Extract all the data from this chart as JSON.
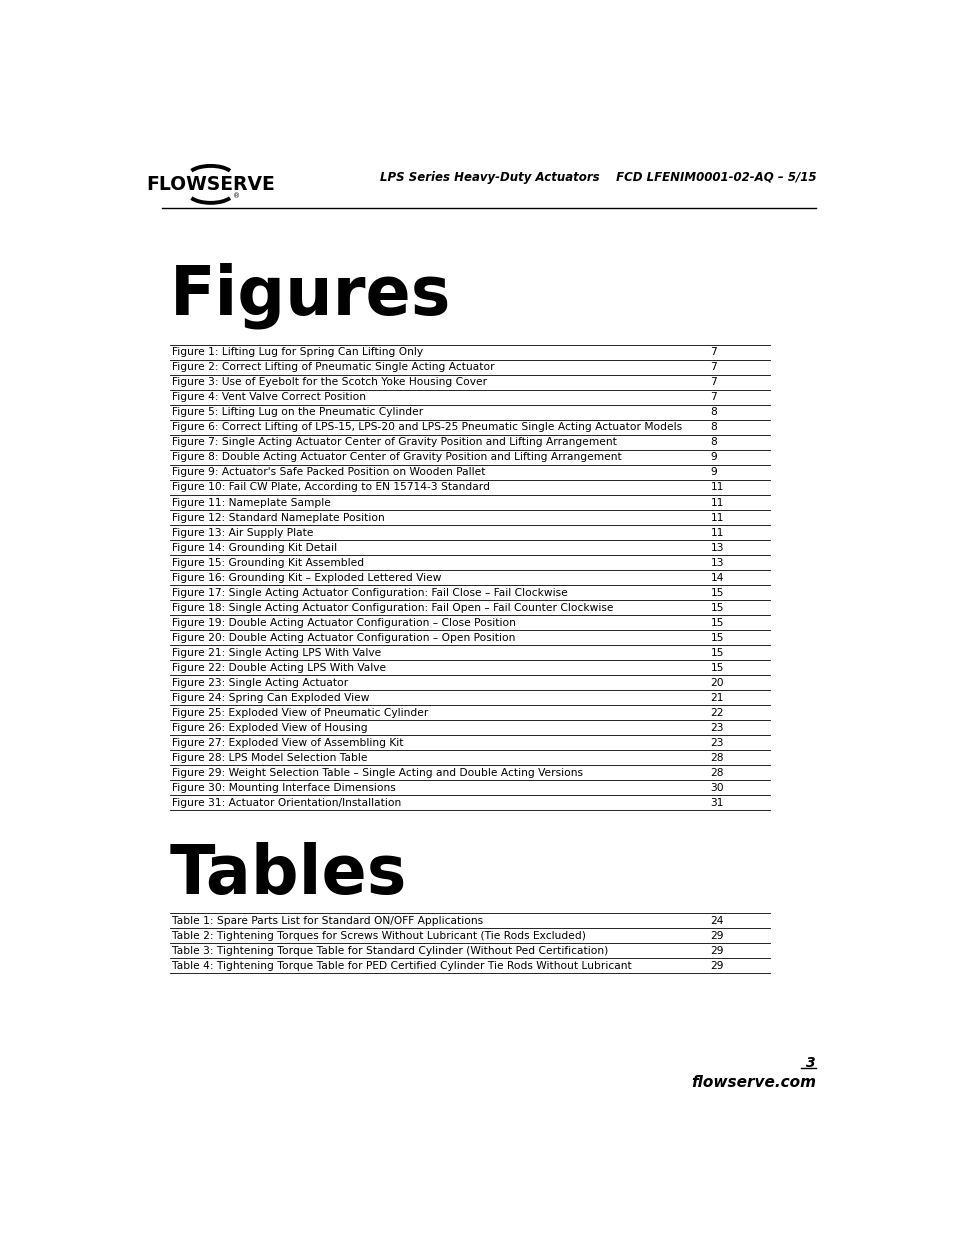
{
  "header_right": "LPS Series Heavy-Duty Actuators    FCD LFENIM0001-02-AQ – 5/15",
  "figures_title": "Figures",
  "figures_entries": [
    [
      "Figure 1: Lifting Lug for Spring Can Lifting Only",
      "7"
    ],
    [
      "Figure 2: Correct Lifting of Pneumatic Single Acting Actuator",
      "7"
    ],
    [
      "Figure 3: Use of Eyebolt for the Scotch Yoke Housing Cover",
      "7"
    ],
    [
      "Figure 4: Vent Valve Correct Position",
      "7"
    ],
    [
      "Figure 5: Lifting Lug on the Pneumatic Cylinder",
      "8"
    ],
    [
      "Figure 6: Correct Lifting of LPS-15, LPS-20 and LPS-25 Pneumatic Single Acting Actuator Models",
      "8"
    ],
    [
      "Figure 7: Single Acting Actuator Center of Gravity Position and Lifting Arrangement",
      "8"
    ],
    [
      "Figure 8: Double Acting Actuator Center of Gravity Position and Lifting Arrangement",
      "9"
    ],
    [
      "Figure 9: Actuator's Safe Packed Position on Wooden Pallet",
      "9"
    ],
    [
      "Figure 10: Fail CW Plate, According to EN 15714-3 Standard",
      "11"
    ],
    [
      "Figure 11: Nameplate Sample",
      "11"
    ],
    [
      "Figure 12: Standard Nameplate Position",
      "11"
    ],
    [
      "Figure 13: Air Supply Plate",
      "11"
    ],
    [
      "Figure 14: Grounding Kit Detail",
      "13"
    ],
    [
      "Figure 15: Grounding Kit Assembled",
      "13"
    ],
    [
      "Figure 16: Grounding Kit – Exploded Lettered View",
      "14"
    ],
    [
      "Figure 17: Single Acting Actuator Configuration: Fail Close – Fail Clockwise",
      "15"
    ],
    [
      "Figure 18: Single Acting Actuator Configuration: Fail Open – Fail Counter Clockwise",
      "15"
    ],
    [
      "Figure 19: Double Acting Actuator Configuration – Close Position",
      "15"
    ],
    [
      "Figure 20: Double Acting Actuator Configuration – Open Position",
      "15"
    ],
    [
      "Figure 21: Single Acting LPS With Valve",
      "15"
    ],
    [
      "Figure 22: Double Acting LPS With Valve",
      "15"
    ],
    [
      "Figure 23: Single Acting Actuator",
      "20"
    ],
    [
      "Figure 24: Spring Can Exploded View",
      "21"
    ],
    [
      "Figure 25: Exploded View of Pneumatic Cylinder",
      "22"
    ],
    [
      "Figure 26: Exploded View of Housing",
      "23"
    ],
    [
      "Figure 27: Exploded View of Assembling Kit",
      "23"
    ],
    [
      "Figure 28: LPS Model Selection Table",
      "28"
    ],
    [
      "Figure 29: Weight Selection Table – Single Acting and Double Acting Versions",
      "28"
    ],
    [
      "Figure 30: Mounting Interface Dimensions",
      "30"
    ],
    [
      "Figure 31: Actuator Orientation/Installation",
      "31"
    ]
  ],
  "tables_title": "Tables",
  "tables_entries": [
    [
      "Table 1: Spare Parts List for Standard ON/OFF Applications",
      "24"
    ],
    [
      "Table 2: Tightening Torques for Screws Without Lubricant (Tie Rods Excluded)",
      "29"
    ],
    [
      "Table 3: Tightening Torque Table for Standard Cylinder (Without Ped Certification)",
      "29"
    ],
    [
      "Table 4: Tightening Torque Table for PED Certified Cylinder Tie Rods Without Lubricant",
      "29"
    ]
  ],
  "page_number": "3",
  "footer_text": "flowserve.com",
  "bg_color": "#ffffff",
  "text_color": "#000000"
}
